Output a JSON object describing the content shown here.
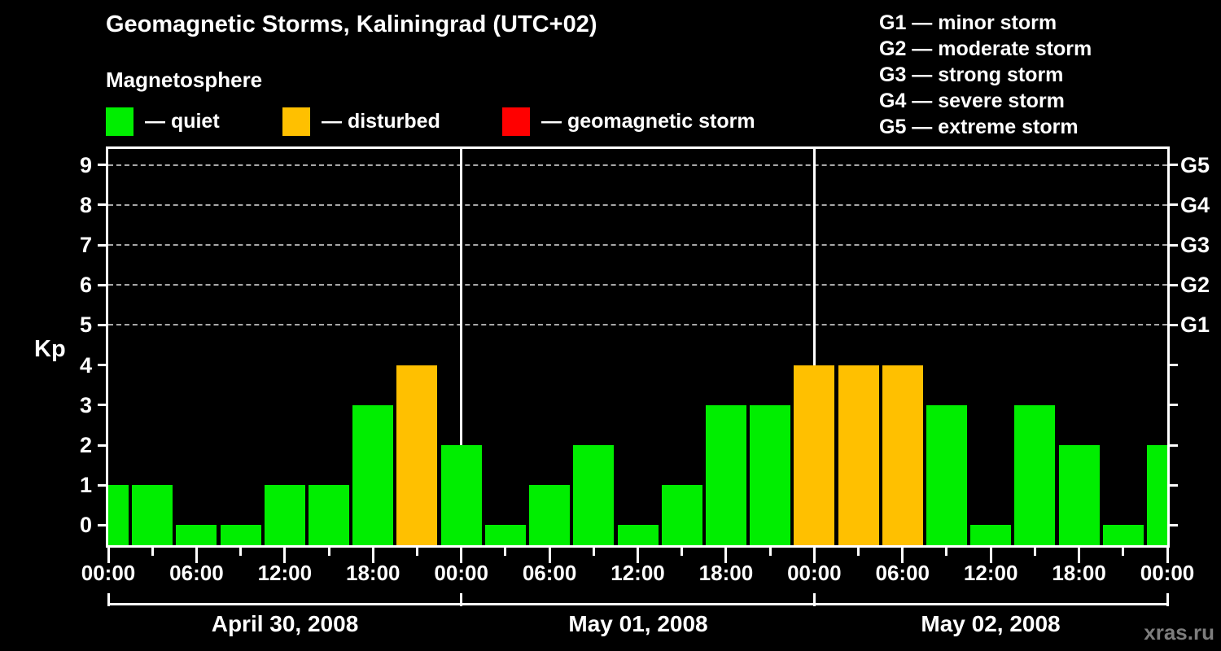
{
  "title": "Geomagnetic Storms, Kaliningrad (UTC+02)",
  "subtitle": "Magnetosphere",
  "legend": [
    {
      "label": "— quiet",
      "status": "quiet"
    },
    {
      "label": "— disturbed",
      "status": "disturbed"
    },
    {
      "label": "— geomagnetic storm",
      "status": "storm"
    }
  ],
  "g_legend": [
    "G1 — minor storm",
    "G2 — moderate storm",
    "G3 — strong storm",
    "G4 — severe storm",
    "G5 — extreme storm"
  ],
  "colors": {
    "quiet": "#00ee00",
    "disturbed": "#ffc000",
    "storm": "#ff0000",
    "background": "#000000",
    "axis": "#ffffff",
    "grid": "#a8a8a8",
    "watermark": "#7d7d7d"
  },
  "watermark": "xras.ru",
  "chart_data": {
    "type": "bar",
    "title": "Geomagnetic Storms, Kaliningrad (UTC+02)",
    "subtitle": "Magnetosphere",
    "ylabel": "Kp",
    "ylim": [
      -0.5,
      9.4
    ],
    "y_ticks": [
      0,
      1,
      2,
      3,
      4,
      5,
      6,
      7,
      8,
      9
    ],
    "grid_levels": [
      5,
      6,
      7,
      8,
      9
    ],
    "right_axis": [
      {
        "kp": 5,
        "label": "G1"
      },
      {
        "kp": 6,
        "label": "G2"
      },
      {
        "kp": 7,
        "label": "G3"
      },
      {
        "kp": 8,
        "label": "G4"
      },
      {
        "kp": 9,
        "label": "G5"
      }
    ],
    "x_hours_total": 72,
    "x_tick_step_hours": 3,
    "x_label_step_hours": 6,
    "x_tick_labels": [
      "00:00",
      "06:00",
      "12:00",
      "18:00",
      "00:00",
      "06:00",
      "12:00",
      "18:00",
      "00:00",
      "06:00",
      "12:00",
      "18:00",
      "00:00"
    ],
    "day_boundaries_hours": [
      24,
      48
    ],
    "bracket_hours": [
      0,
      24,
      48,
      72
    ],
    "days": [
      {
        "label": "April 30, 2008",
        "start_hour": 0,
        "end_hour": 24
      },
      {
        "label": "May 01, 2008",
        "start_hour": 24,
        "end_hour": 48
      },
      {
        "label": "May 02, 2008",
        "start_hour": 48,
        "end_hour": 72
      }
    ],
    "points": [
      {
        "hour": 0,
        "kp": 1,
        "status": "quiet"
      },
      {
        "hour": 3,
        "kp": 1,
        "status": "quiet"
      },
      {
        "hour": 6,
        "kp": 0,
        "status": "quiet"
      },
      {
        "hour": 9,
        "kp": 0,
        "status": "quiet"
      },
      {
        "hour": 12,
        "kp": 1,
        "status": "quiet"
      },
      {
        "hour": 15,
        "kp": 1,
        "status": "quiet"
      },
      {
        "hour": 18,
        "kp": 3,
        "status": "quiet"
      },
      {
        "hour": 21,
        "kp": 4,
        "status": "disturbed"
      },
      {
        "hour": 24,
        "kp": 2,
        "status": "quiet"
      },
      {
        "hour": 27,
        "kp": 0,
        "status": "quiet"
      },
      {
        "hour": 30,
        "kp": 1,
        "status": "quiet"
      },
      {
        "hour": 33,
        "kp": 2,
        "status": "quiet"
      },
      {
        "hour": 36,
        "kp": 0,
        "status": "quiet"
      },
      {
        "hour": 39,
        "kp": 1,
        "status": "quiet"
      },
      {
        "hour": 42,
        "kp": 3,
        "status": "quiet"
      },
      {
        "hour": 45,
        "kp": 3,
        "status": "quiet"
      },
      {
        "hour": 48,
        "kp": 4,
        "status": "disturbed"
      },
      {
        "hour": 51,
        "kp": 4,
        "status": "disturbed"
      },
      {
        "hour": 54,
        "kp": 4,
        "status": "disturbed"
      },
      {
        "hour": 57,
        "kp": 3,
        "status": "quiet"
      },
      {
        "hour": 60,
        "kp": 0,
        "status": "quiet"
      },
      {
        "hour": 63,
        "kp": 3,
        "status": "quiet"
      },
      {
        "hour": 66,
        "kp": 2,
        "status": "quiet"
      },
      {
        "hour": 69,
        "kp": 0,
        "status": "quiet"
      },
      {
        "hour": 72,
        "kp": 2,
        "status": "quiet"
      }
    ]
  }
}
